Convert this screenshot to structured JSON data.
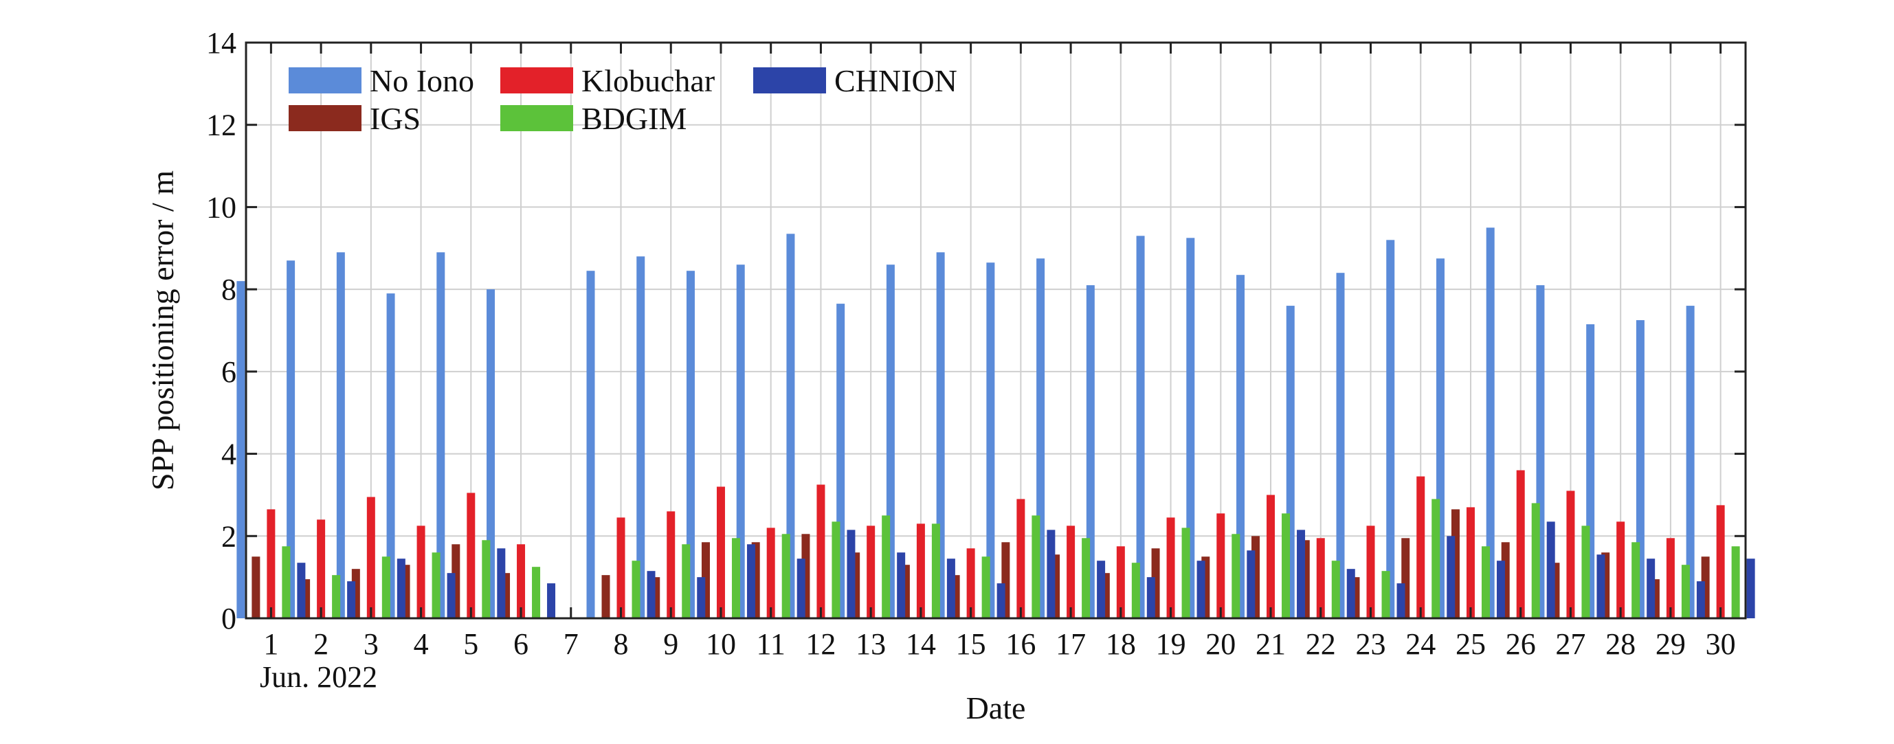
{
  "chart_data": {
    "type": "bar",
    "title": "",
    "xlabel": "Date",
    "ylabel": "SPP positioning error / m",
    "date_sublabel": "Jun. 2022",
    "ylim": [
      0,
      14
    ],
    "yticks": [
      "0",
      "2",
      "4",
      "6",
      "8",
      "10",
      "12",
      "14"
    ],
    "grid": true,
    "legend_position": "top-left",
    "categories": [
      "1",
      "2",
      "3",
      "4",
      "5",
      "6",
      "7",
      "8",
      "9",
      "10",
      "11",
      "12",
      "13",
      "14",
      "15",
      "16",
      "17",
      "18",
      "19",
      "20",
      "21",
      "22",
      "23",
      "24",
      "25",
      "26",
      "27",
      "28",
      "29",
      "30"
    ],
    "series": [
      {
        "name": "No Iono",
        "color": "#5b8bd9",
        "values": [
          8.2,
          8.7,
          8.9,
          7.9,
          8.9,
          8.0,
          0,
          8.45,
          8.8,
          8.45,
          8.6,
          9.35,
          7.65,
          8.6,
          8.9,
          8.65,
          8.75,
          8.1,
          9.3,
          9.25,
          8.35,
          7.6,
          8.4,
          9.2,
          8.75,
          9.5,
          8.1,
          7.15,
          7.25,
          7.6
        ]
      },
      {
        "name": "IGS",
        "color": "#8b2a1e",
        "values": [
          1.5,
          0.95,
          1.2,
          1.3,
          1.8,
          1.1,
          0,
          1.05,
          1.0,
          1.85,
          1.85,
          2.05,
          1.6,
          1.3,
          1.05,
          1.85,
          1.55,
          1.1,
          1.7,
          1.5,
          2.0,
          1.9,
          1.0,
          1.95,
          2.65,
          1.85,
          1.35,
          1.6,
          0.95,
          1.5
        ]
      },
      {
        "name": "Klobuchar",
        "color": "#e32129",
        "values": [
          2.65,
          2.4,
          2.95,
          2.25,
          3.05,
          1.8,
          0,
          2.45,
          2.6,
          3.2,
          2.2,
          3.25,
          2.25,
          2.3,
          1.7,
          2.9,
          2.25,
          1.75,
          2.45,
          2.55,
          3.0,
          1.95,
          2.25,
          3.45,
          2.7,
          3.6,
          3.1,
          2.35,
          1.95,
          2.75
        ]
      },
      {
        "name": "BDGIM",
        "color": "#5cc23a",
        "values": [
          1.75,
          1.05,
          1.5,
          1.6,
          1.9,
          1.25,
          0,
          1.4,
          1.8,
          1.95,
          2.05,
          2.35,
          2.5,
          2.3,
          1.5,
          2.5,
          1.95,
          1.35,
          2.2,
          2.05,
          2.55,
          1.4,
          1.15,
          2.9,
          1.75,
          2.8,
          2.25,
          1.85,
          1.3,
          1.75
        ]
      },
      {
        "name": "CHNION",
        "color": "#2c44a8",
        "values": [
          1.35,
          0.9,
          1.45,
          1.1,
          1.7,
          0.85,
          0,
          1.15,
          1.0,
          1.8,
          1.45,
          2.15,
          1.6,
          1.45,
          0.85,
          2.15,
          1.4,
          1.0,
          1.4,
          1.65,
          2.15,
          1.2,
          0.85,
          2.0,
          1.4,
          2.35,
          1.55,
          1.45,
          0.9,
          1.45
        ]
      }
    ]
  }
}
